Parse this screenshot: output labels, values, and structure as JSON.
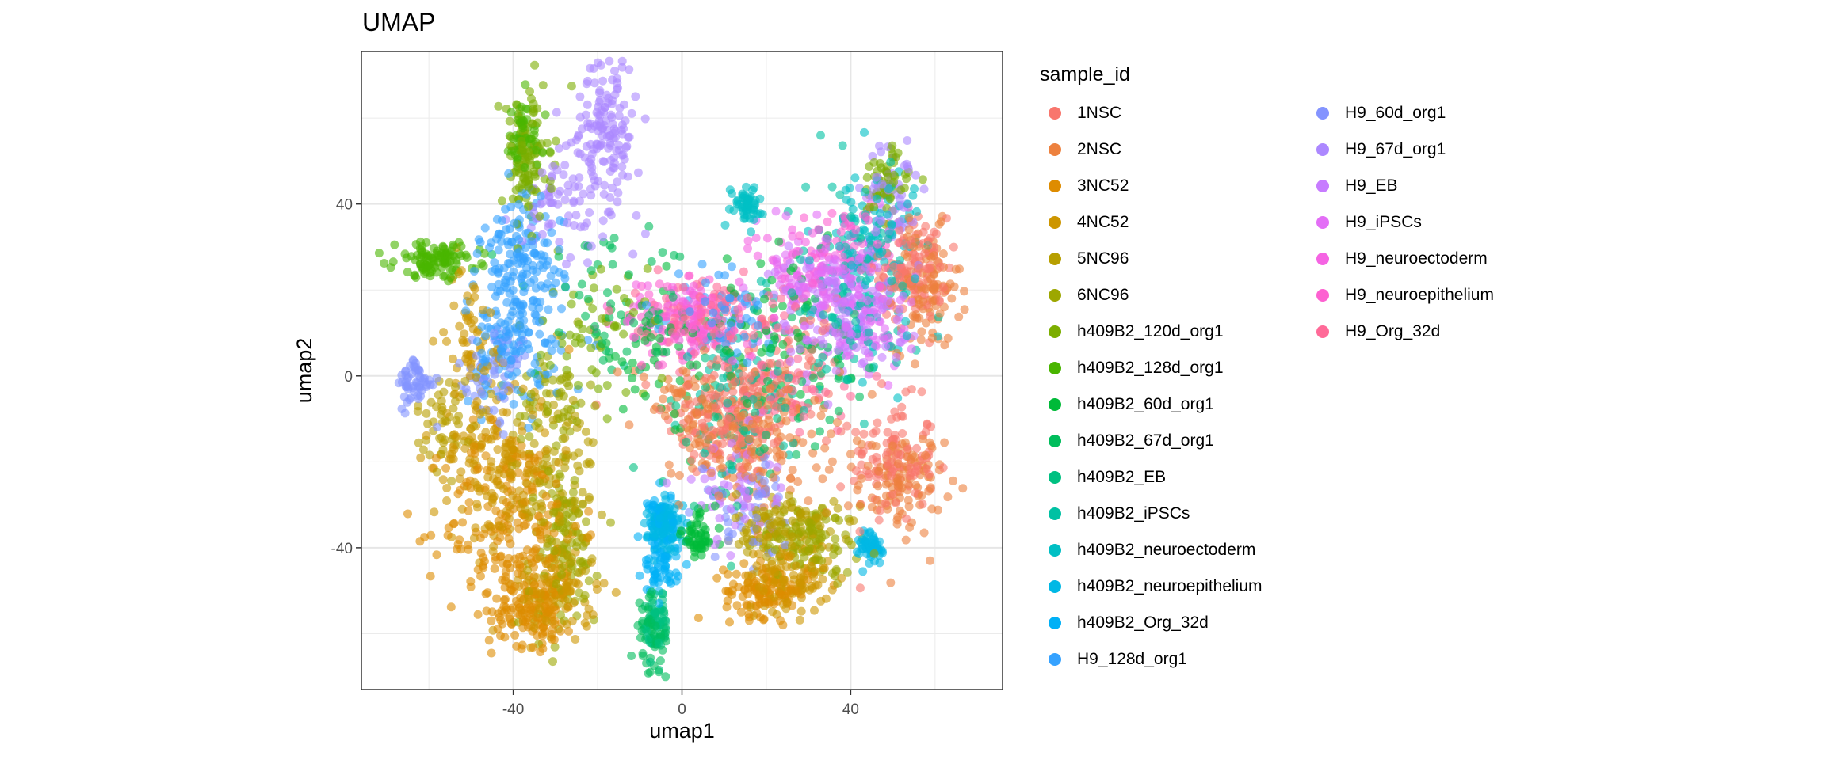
{
  "chart_data": {
    "type": "scatter",
    "title": "UMAP",
    "xlabel": "umap1",
    "ylabel": "umap2",
    "xlim": [
      -76,
      76
    ],
    "ylim": [
      -73,
      75.5
    ],
    "x_ticks": [
      -40,
      0,
      40
    ],
    "y_ticks": [
      -40,
      0,
      40
    ],
    "x_tick_labels": [
      "-40",
      "0",
      "40"
    ],
    "y_tick_labels": [
      "-40",
      "0",
      "40"
    ],
    "grid": true,
    "theme": "bw",
    "point_alpha": 0.6,
    "legend": {
      "title": "sample_id",
      "placement": "right",
      "columns": 2
    },
    "series_note_format": "clusters are [x, y, spread_x, spread_y, relative_density] in data units",
    "series": [
      {
        "name": "1NSC",
        "color": "#F8766D",
        "clusters": [
          [
            12,
            -10,
            8,
            7,
            3
          ],
          [
            50,
            -20,
            5,
            7,
            2
          ],
          [
            55,
            25,
            4,
            6,
            2
          ],
          [
            25,
            5,
            8,
            6,
            1
          ]
        ]
      },
      {
        "name": "2NSC",
        "color": "#ED813E",
        "clusters": [
          [
            18,
            -15,
            9,
            8,
            3
          ],
          [
            52,
            -25,
            5,
            6,
            2
          ],
          [
            58,
            20,
            4,
            7,
            2
          ],
          [
            0,
            -5,
            6,
            6,
            1
          ]
        ]
      },
      {
        "name": "3NC52",
        "color": "#DE8C00",
        "clusters": [
          [
            -40,
            -35,
            8,
            12,
            4
          ],
          [
            -35,
            -55,
            5,
            4,
            2
          ],
          [
            20,
            -50,
            5,
            3,
            2
          ]
        ]
      },
      {
        "name": "4NC52",
        "color": "#CD9600",
        "clusters": [
          [
            -45,
            -20,
            7,
            10,
            3
          ],
          [
            -30,
            -50,
            5,
            5,
            2
          ],
          [
            25,
            -47,
            5,
            4,
            2
          ],
          [
            -50,
            10,
            3,
            8,
            1
          ]
        ]
      },
      {
        "name": "5NC96",
        "color": "#B79F00",
        "clusters": [
          [
            -30,
            -25,
            5,
            12,
            2
          ],
          [
            25,
            -35,
            6,
            4,
            2
          ],
          [
            -55,
            -10,
            4,
            5,
            1
          ]
        ]
      },
      {
        "name": "6NC96",
        "color": "#9DA700",
        "clusters": [
          [
            -28,
            -40,
            4,
            10,
            2
          ],
          [
            30,
            -38,
            6,
            4,
            2
          ],
          [
            -30,
            -5,
            4,
            6,
            1
          ]
        ]
      },
      {
        "name": "h409B2_120d_org1",
        "color": "#7CAE00",
        "clusters": [
          [
            -37,
            50,
            3,
            8,
            2
          ],
          [
            -20,
            10,
            6,
            8,
            1
          ],
          [
            48,
            45,
            3,
            4,
            1
          ]
        ]
      },
      {
        "name": "h409B2_128d_org1",
        "color": "#49B500",
        "clusters": [
          [
            -58,
            27,
            5,
            2,
            2
          ],
          [
            -38,
            55,
            3,
            5,
            1
          ]
        ]
      },
      {
        "name": "h409B2_60d_org1",
        "color": "#00BA38",
        "clusters": [
          [
            4,
            -37,
            2,
            3,
            1
          ],
          [
            -5,
            5,
            8,
            8,
            1
          ],
          [
            20,
            10,
            8,
            8,
            1
          ]
        ]
      },
      {
        "name": "h409B2_67d_org1",
        "color": "#00BD5C",
        "clusters": [
          [
            -7,
            -60,
            2,
            5,
            1
          ],
          [
            -15,
            15,
            10,
            8,
            1
          ],
          [
            30,
            0,
            8,
            10,
            1
          ]
        ]
      },
      {
        "name": "h409B2_EB",
        "color": "#00C081",
        "clusters": [
          [
            -6,
            -58,
            1.5,
            4,
            1
          ],
          [
            10,
            -10,
            8,
            10,
            1
          ]
        ]
      },
      {
        "name": "h409B2_iPSCs",
        "color": "#00C1A3",
        "clusters": [
          [
            40,
            20,
            8,
            12,
            2
          ],
          [
            15,
            -5,
            6,
            8,
            1
          ]
        ]
      },
      {
        "name": "h409B2_neuroectoderm",
        "color": "#00BFC4",
        "clusters": [
          [
            45,
            30,
            6,
            10,
            2
          ],
          [
            15,
            40,
            2,
            2,
            1
          ]
        ]
      },
      {
        "name": "h409B2_neuroepithelium",
        "color": "#00B8E5",
        "clusters": [
          [
            -4,
            -35,
            2,
            3,
            2
          ],
          [
            45,
            -40,
            1.5,
            2,
            1
          ]
        ]
      },
      {
        "name": "h409B2_Org_32d",
        "color": "#00B0F6",
        "clusters": [
          [
            -5,
            -33,
            1.5,
            3,
            1
          ],
          [
            -5,
            -45,
            2,
            3,
            1
          ]
        ]
      },
      {
        "name": "H9_128d_org1",
        "color": "#35A2FF",
        "clusters": [
          [
            -38,
            25,
            5,
            8,
            3
          ],
          [
            -40,
            5,
            6,
            6,
            2
          ],
          [
            10,
            15,
            6,
            6,
            1
          ]
        ]
      },
      {
        "name": "H9_60d_org1",
        "color": "#8494FF",
        "clusters": [
          [
            -63,
            -2,
            2,
            3,
            1
          ],
          [
            -45,
            0,
            5,
            6,
            1
          ],
          [
            15,
            -30,
            5,
            6,
            1
          ]
        ]
      },
      {
        "name": "H9_67d_org1",
        "color": "#AC88FF",
        "clusters": [
          [
            -18,
            58,
            4,
            10,
            3
          ],
          [
            -30,
            40,
            4,
            5,
            1
          ],
          [
            50,
            42,
            3,
            6,
            1
          ]
        ]
      },
      {
        "name": "H9_EB",
        "color": "#C77CFF",
        "clusters": [
          [
            38,
            15,
            8,
            8,
            3
          ],
          [
            12,
            -25,
            5,
            6,
            1
          ]
        ]
      },
      {
        "name": "H9_iPSCs",
        "color": "#E36EF6",
        "clusters": [
          [
            35,
            22,
            7,
            7,
            2
          ],
          [
            45,
            10,
            5,
            5,
            1
          ]
        ]
      },
      {
        "name": "H9_neuroectoderm",
        "color": "#F564E3",
        "clusters": [
          [
            30,
            25,
            6,
            6,
            1
          ],
          [
            0,
            15,
            6,
            4,
            1
          ]
        ]
      },
      {
        "name": "H9_neuroepithelium",
        "color": "#FD61D1",
        "clusters": [
          [
            2,
            12,
            8,
            5,
            2
          ],
          [
            40,
            30,
            5,
            5,
            1
          ]
        ]
      },
      {
        "name": "H9_Org_32d",
        "color": "#FF6A98",
        "clusters": [
          [
            5,
            15,
            8,
            4,
            2
          ],
          [
            25,
            0,
            8,
            6,
            1
          ]
        ]
      }
    ]
  }
}
